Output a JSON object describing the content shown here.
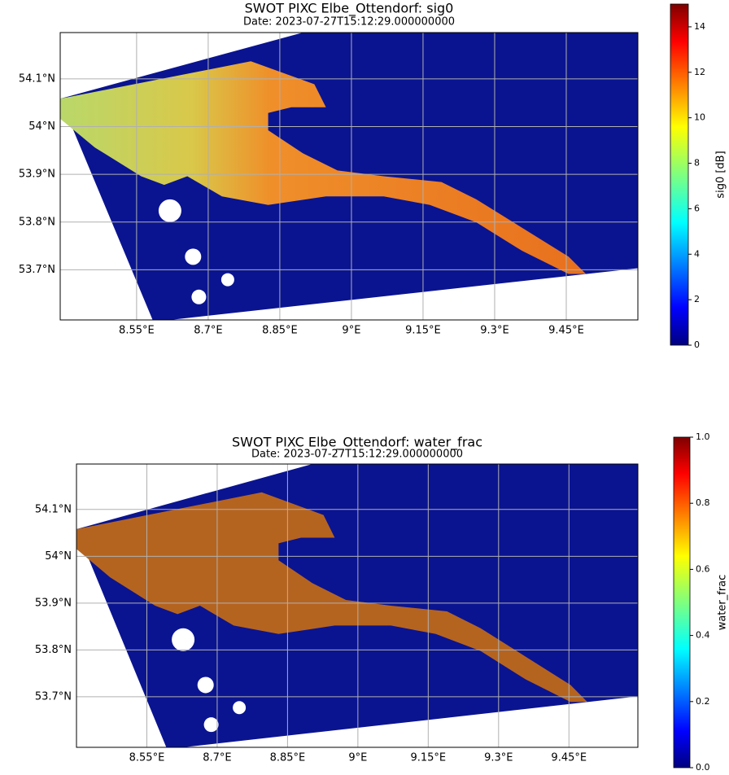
{
  "chart_data": [
    {
      "type": "map",
      "title": "SWOT PIXC Elbe_Ottendorf: sig0",
      "subtitle": "Date: 2023-07-27T15:12:29.000000000",
      "xlim": [
        8.39,
        9.6
      ],
      "xticks": [
        {
          "value": 8.55,
          "label": "8.55°E"
        },
        {
          "value": 8.7,
          "label": "8.7°E"
        },
        {
          "value": 8.85,
          "label": "8.85°E"
        },
        {
          "value": 9.0,
          "label": "9°E"
        },
        {
          "value": 9.15,
          "label": "9.15°E"
        },
        {
          "value": 9.3,
          "label": "9.3°E"
        },
        {
          "value": 9.45,
          "label": "9.45°E"
        }
      ],
      "ylim": [
        53.595,
        54.197
      ],
      "yticks": [
        {
          "value": 53.7,
          "label": "53.7°N"
        },
        {
          "value": 53.8,
          "label": "53.8°N"
        },
        {
          "value": 53.9,
          "label": "53.9°N"
        },
        {
          "value": 54.0,
          "label": "54°N"
        },
        {
          "value": 54.1,
          "label": "54.1°N"
        }
      ],
      "grid": true,
      "colorbar": {
        "label": "sig0 [dB]",
        "colormap": "jet",
        "lim": [
          0,
          15
        ],
        "ticks": [
          0,
          2,
          4,
          6,
          8,
          10,
          12,
          14
        ]
      }
    },
    {
      "type": "map",
      "title": "SWOT PIXC Elbe_Ottendorf: water_frac",
      "subtitle": "Date: 2023-07-27T15:12:29.000000000",
      "xlim": [
        8.4,
        9.597
      ],
      "xticks": [
        {
          "value": 8.55,
          "label": "8.55°E"
        },
        {
          "value": 8.7,
          "label": "8.7°E"
        },
        {
          "value": 8.85,
          "label": "8.85°E"
        },
        {
          "value": 9.0,
          "label": "9°E"
        },
        {
          "value": 9.15,
          "label": "9.15°E"
        },
        {
          "value": 9.3,
          "label": "9.3°E"
        },
        {
          "value": 9.45,
          "label": "9.45°E"
        }
      ],
      "ylim": [
        53.592,
        54.197
      ],
      "yticks": [
        {
          "value": 53.7,
          "label": "53.7°N"
        },
        {
          "value": 53.8,
          "label": "53.8°N"
        },
        {
          "value": 53.9,
          "label": "53.9°N"
        },
        {
          "value": 54.0,
          "label": "54°N"
        },
        {
          "value": 54.1,
          "label": "54.1°N"
        }
      ],
      "grid": true,
      "colorbar": {
        "label": "water_frac",
        "colormap": "jet",
        "lim": [
          0,
          1
        ],
        "ticks": [
          {
            "value": 0,
            "label": "0.0"
          },
          0.2,
          0.4,
          0.6,
          0.8,
          {
            "value": 1,
            "label": "1.0"
          }
        ]
      }
    }
  ]
}
